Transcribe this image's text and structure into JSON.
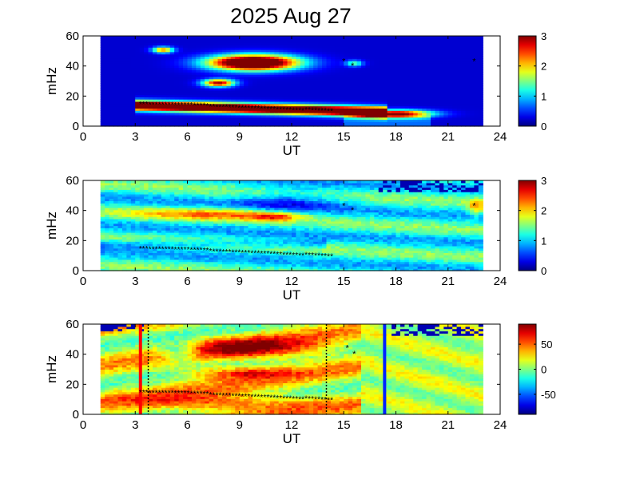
{
  "chart_data": {
    "title": "2025 Aug 27",
    "type": "heatmap",
    "panels": [
      {
        "name": "panel-1",
        "xlabel": "UT",
        "ylabel": "mHz",
        "xlim": [
          0,
          24
        ],
        "ylim": [
          0,
          60
        ],
        "xticks": [
          "0",
          "3",
          "6",
          "9",
          "12",
          "15",
          "18",
          "21",
          "24"
        ],
        "yticks": [
          "0",
          "20",
          "40",
          "60"
        ],
        "data_range_x": [
          1.0,
          23.0
        ],
        "colorbar": {
          "min": 0,
          "max": 3,
          "ticks": [
            "0",
            "1",
            "2",
            "3"
          ]
        },
        "regions": [
          {
            "x": 9.8,
            "y": 42.5,
            "value": 3.0
          },
          {
            "x": 8.5,
            "y": 14.0,
            "value": 3.0
          },
          {
            "x": 16.5,
            "y": 8.5,
            "value": 2.6
          },
          {
            "x": 7.8,
            "y": 29.0,
            "value": 2.6
          },
          {
            "x": 4.6,
            "y": 51.0,
            "value": 2.4
          }
        ],
        "track": {
          "x_start": 3.3,
          "x_end": 14.3,
          "y_start": 14.5,
          "y_end": 10.0
        },
        "extra_points": [
          {
            "x": 15.5,
            "y": 40.0,
            "color": "#000000"
          },
          {
            "x": 15.0,
            "y": 43.0,
            "color": "#d00000"
          },
          {
            "x": 22.5,
            "y": 43.0,
            "color": "#d00000"
          }
        ]
      },
      {
        "name": "panel-2",
        "xlabel": "UT",
        "ylabel": "mHz",
        "xlim": [
          0,
          24
        ],
        "ylim": [
          0,
          60
        ],
        "xticks": [
          "0",
          "3",
          "6",
          "9",
          "12",
          "15",
          "18",
          "21",
          "24"
        ],
        "yticks": [
          "0",
          "20",
          "40",
          "60"
        ],
        "data_range_x": [
          1.0,
          23.0
        ],
        "colorbar": {
          "min": 0,
          "max": 3,
          "ticks": [
            "0",
            "1",
            "2",
            "3"
          ]
        },
        "track": {
          "x_start": 3.3,
          "x_end": 14.3,
          "y_start": 14.5,
          "y_end": 9.5
        },
        "extra_points": [
          {
            "x": 15.5,
            "y": 40.0,
            "color": "#000000"
          },
          {
            "x": 15.0,
            "y": 43.0,
            "color": "#d00000"
          },
          {
            "x": 22.5,
            "y": 43.0,
            "color": "#d00000"
          }
        ]
      },
      {
        "name": "panel-3",
        "xlabel": "UT",
        "ylabel": "mHz",
        "xlim": [
          0,
          24
        ],
        "ylim": [
          0,
          60
        ],
        "xticks": [
          "0",
          "3",
          "6",
          "9",
          "12",
          "15",
          "18",
          "21",
          "24"
        ],
        "yticks": [
          "0",
          "20",
          "40",
          "60"
        ],
        "data_range_x": [
          1.0,
          23.0
        ],
        "colorbar": {
          "min": -90,
          "max": 90,
          "ticks": [
            "-50",
            "0",
            "50"
          ]
        },
        "track": {
          "x_start": 3.3,
          "x_end": 14.3,
          "y_start": 14.5,
          "y_end": 9.5
        },
        "extra_points": [
          {
            "x": 15.2,
            "y": 44.0,
            "color": "#000000"
          },
          {
            "x": 15.6,
            "y": 40.0,
            "color": "#000000"
          }
        ],
        "vertical_lines": [
          {
            "x": 3.3,
            "color": "#ff0000",
            "style": "solid"
          },
          {
            "x": 3.75,
            "color": "#000000",
            "style": "dotted"
          },
          {
            "x": 14.0,
            "color": "#000000",
            "style": "dotted"
          },
          {
            "x": 17.35,
            "color": "#0022ff",
            "style": "solid"
          }
        ]
      }
    ]
  }
}
